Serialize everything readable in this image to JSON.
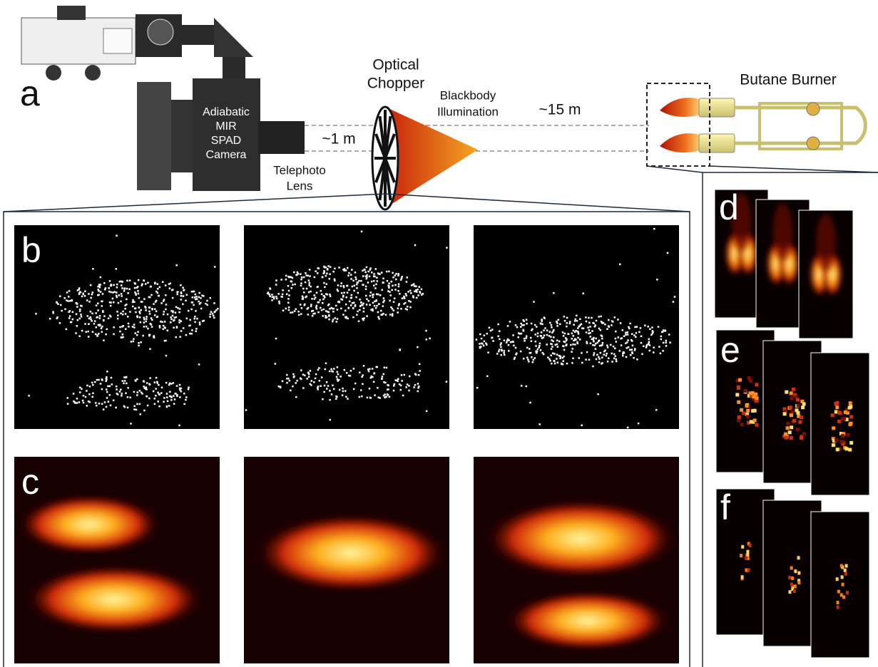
{
  "panel_a": {
    "label": "a",
    "camera_label": [
      "Adiabatic",
      "MIR",
      "SPAD",
      "Camera"
    ],
    "lens_label": [
      "Telephoto",
      "Lens"
    ],
    "chopper_label": [
      "Optical",
      "Chopper"
    ],
    "illumination_label": [
      "Blackbody",
      "Illumination"
    ],
    "distance_near": "~1 m",
    "distance_far": "~15 m",
    "burner_label": "Butane Burner"
  },
  "panel_b": {
    "label": "b"
  },
  "panel_c": {
    "label": "c"
  },
  "panel_d": {
    "label": "d"
  },
  "panel_e": {
    "label": "e"
  },
  "panel_f": {
    "label": "f"
  }
}
